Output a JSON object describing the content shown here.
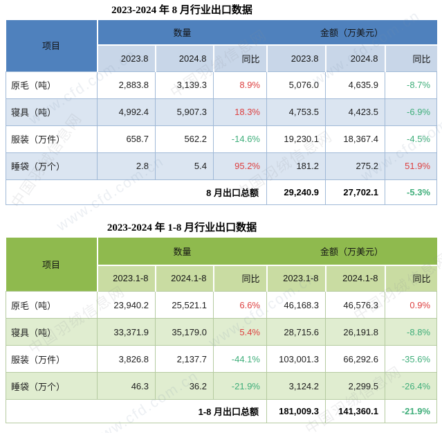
{
  "colors": {
    "t1_header": "#4F81BD",
    "t1_sub": "#C8D6E8",
    "t1_alt": "#DBE5F1",
    "t1_border": "#A0B9D7",
    "t2_header": "#8FBA4E",
    "t2_sub": "#C9DCA2",
    "t2_alt": "#E0EDD0",
    "t2_border": "#B5CBA0",
    "up": "#DD4040",
    "down": "#3FAE7A"
  },
  "watermark": {
    "cn": "中国羽绒信息网",
    "url": "www.cfd.com.cn"
  },
  "table1": {
    "title": "2023-2024 年 8 月行业出口数据",
    "header": {
      "item": "项目",
      "quantity": "数量",
      "amount": "金额（万美元）",
      "col_y1": "2023.8",
      "col_y2": "2024.8",
      "yoy": "同比"
    },
    "rows": [
      {
        "item": "原毛（吨）",
        "q1": "2,883.8",
        "q2": "3,139.3",
        "qyoy": "8.9%",
        "a1": "5,076.0",
        "a2": "4,635.9",
        "ayoy": "-8.7%"
      },
      {
        "item": "寝具（吨）",
        "q1": "4,992.4",
        "q2": "5,907.3",
        "qyoy": "18.3%",
        "a1": "4,753.5",
        "a2": "4,423.5",
        "ayoy": "-6.9%"
      },
      {
        "item": "服装（万件）",
        "q1": "658.7",
        "q2": "562.2",
        "qyoy": "-14.6%",
        "a1": "19,230.1",
        "a2": "18,367.4",
        "ayoy": "-4.5%"
      },
      {
        "item": "睡袋（万个）",
        "q1": "2.8",
        "q2": "5.4",
        "qyoy": "95.2%",
        "a1": "181.2",
        "a2": "275.2",
        "ayoy": "51.9%"
      }
    ],
    "total": {
      "label": "8 月出口总额",
      "a1": "29,240.9",
      "a2": "27,702.1",
      "ayoy": "-5.3%"
    }
  },
  "table2": {
    "title": "2023-2024 年 1-8 月行业出口数据",
    "header": {
      "item": "项目",
      "quantity": "数量",
      "amount": "金额（万美元）",
      "col_y1": "2023.1-8",
      "col_y2": "2024.1-8",
      "yoy": "同比"
    },
    "rows": [
      {
        "item": "原毛（吨）",
        "q1": "23,940.2",
        "q2": "25,521.1",
        "qyoy": "6.6%",
        "a1": "46,168.3",
        "a2": "46,576.3",
        "ayoy": "0.9%"
      },
      {
        "item": "寝具（吨）",
        "q1": "33,371.9",
        "q2": "35,179.0",
        "qyoy": "5.4%",
        "a1": "28,715.6",
        "a2": "26,191.8",
        "ayoy": "-8.8%"
      },
      {
        "item": "服装（万件）",
        "q1": "3,826.8",
        "q2": "2,137.7",
        "qyoy": "-44.1%",
        "a1": "103,001.3",
        "a2": "66,292.6",
        "ayoy": "-35.6%"
      },
      {
        "item": "睡袋（万个）",
        "q1": "46.3",
        "q2": "36.2",
        "qyoy": "-21.9%",
        "a1": "3,124.2",
        "a2": "2,299.5",
        "ayoy": "-26.4%"
      }
    ],
    "total": {
      "label": "1-8 月出口总额",
      "a1": "181,009.3",
      "a2": "141,360.1",
      "ayoy": "-21.9%"
    }
  }
}
